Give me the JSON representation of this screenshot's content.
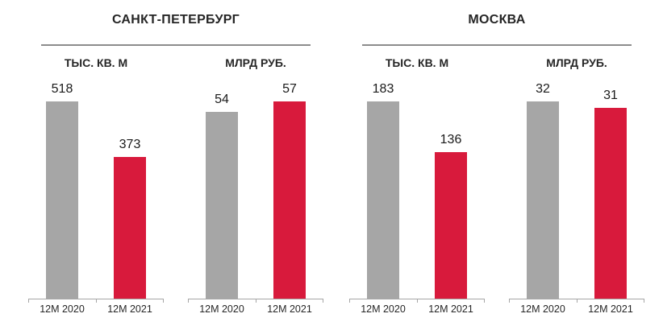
{
  "groups": [
    {
      "title": "САНКТ-ПЕТЕРБУРГ"
    },
    {
      "title": "МОСКВА"
    }
  ],
  "colors": {
    "bar_2020": "#A6A6A6",
    "bar_2021": "#D81A3C",
    "axis_line": "#A6A6A6",
    "header_rule": "#8C8C8C",
    "text": "#1F1F1F"
  },
  "chart_data": [
    {
      "type": "bar",
      "group": "САНКТ-ПЕТЕРБУРГ",
      "title": "ТЫС. КВ. М",
      "categories": [
        "12M 2020",
        "12M 2021"
      ],
      "values": [
        518,
        373
      ],
      "bar_colors": [
        "#A6A6A6",
        "#D81A3C"
      ],
      "value_labels": [
        "518",
        "373"
      ],
      "legend_position": "none",
      "grid": false
    },
    {
      "type": "bar",
      "group": "САНКТ-ПЕТЕРБУРГ",
      "title": "МЛРД РУБ.",
      "categories": [
        "12M 2020",
        "12M 2021"
      ],
      "values": [
        54,
        57
      ],
      "bar_colors": [
        "#A6A6A6",
        "#D81A3C"
      ],
      "value_labels": [
        "54",
        "57"
      ],
      "legend_position": "none",
      "grid": false
    },
    {
      "type": "bar",
      "group": "МОСКВА",
      "title": "ТЫС. КВ. М",
      "categories": [
        "12M 2020",
        "12M 2021"
      ],
      "values": [
        183,
        136
      ],
      "bar_colors": [
        "#A6A6A6",
        "#D81A3C"
      ],
      "value_labels": [
        "183",
        "136"
      ],
      "legend_position": "none",
      "grid": false
    },
    {
      "type": "bar",
      "group": "МОСКВА",
      "title": "МЛРД РУБ.",
      "categories": [
        "12M 2020",
        "12M 2021"
      ],
      "values": [
        32,
        31
      ],
      "bar_colors": [
        "#A6A6A6",
        "#D81A3C"
      ],
      "value_labels": [
        "32",
        "31"
      ],
      "legend_position": "none",
      "grid": false
    }
  ]
}
